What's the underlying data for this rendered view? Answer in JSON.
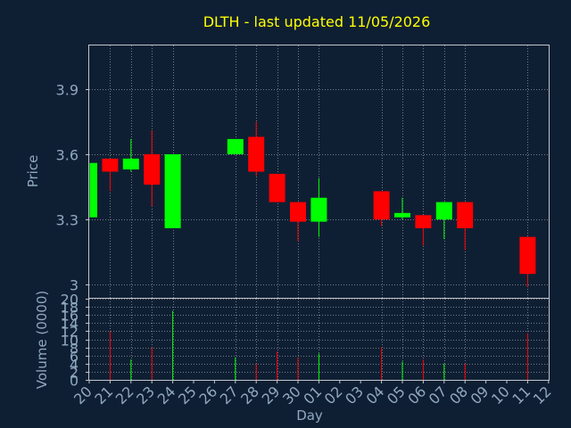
{
  "title": "DLTH - last updated 11/05/2026",
  "colors": {
    "background": "#0f1f33",
    "grid": "#9aa3ad",
    "axis": "#bfc6cc",
    "title": "#ffff00",
    "label": "#8fa8c0",
    "up": "#00ff00",
    "down": "#ff0000"
  },
  "chart_data": {
    "type": "candlestick",
    "title": "DLTH - last updated 11/05/2026",
    "xlabel": "Day",
    "price_panel": {
      "ylabel": "Price",
      "ylim": [
        2.94,
        4.1
      ],
      "yticks": [
        "3",
        "3.3",
        "3.6",
        "3.9"
      ],
      "ytick_values": [
        3.0,
        3.3,
        3.6,
        3.9
      ]
    },
    "volume_panel": {
      "ylabel": "Volume (0000)",
      "ylim": [
        0,
        20
      ],
      "yticks": [
        "0",
        "2",
        "4",
        "6",
        "8",
        "10",
        "12",
        "14",
        "16",
        "18",
        "20"
      ],
      "ytick_values": [
        0,
        2,
        4,
        6,
        8,
        10,
        12,
        14,
        16,
        18,
        20
      ]
    },
    "x_labels": [
      "20",
      "21",
      "22",
      "23",
      "24",
      "25",
      "26",
      "27",
      "28",
      "29",
      "30",
      "01",
      "02",
      "03",
      "04",
      "05",
      "06",
      "07",
      "08",
      "09",
      "10",
      "11",
      "12"
    ],
    "grid_days": [
      "21",
      "22",
      "23",
      "24",
      "27",
      "28",
      "29",
      "30",
      "01",
      "04",
      "05",
      "06",
      "07",
      "08",
      "11"
    ],
    "candles": [
      {
        "day": "20",
        "open": 3.31,
        "close": 3.56,
        "high": 3.56,
        "low": 3.31,
        "volume": 0
      },
      {
        "day": "21",
        "open": 3.58,
        "close": 3.52,
        "high": 3.58,
        "low": 3.43,
        "volume": 12
      },
      {
        "day": "22",
        "open": 3.53,
        "close": 3.58,
        "high": 3.67,
        "low": 3.52,
        "volume": 5
      },
      {
        "day": "23",
        "open": 3.6,
        "close": 3.46,
        "high": 3.71,
        "low": 3.36,
        "volume": 8
      },
      {
        "day": "24",
        "open": 3.26,
        "close": 3.6,
        "high": 3.6,
        "low": 3.26,
        "volume": 17
      },
      {
        "day": "27",
        "open": 3.6,
        "close": 3.67,
        "high": 3.67,
        "low": 3.6,
        "volume": 5.5
      },
      {
        "day": "28",
        "open": 3.68,
        "close": 3.52,
        "high": 3.75,
        "low": 3.5,
        "volume": 4
      },
      {
        "day": "29",
        "open": 3.51,
        "close": 3.38,
        "high": 3.51,
        "low": 3.38,
        "volume": 7
      },
      {
        "day": "30",
        "open": 3.38,
        "close": 3.29,
        "high": 3.38,
        "low": 3.2,
        "volume": 5.5
      },
      {
        "day": "01",
        "open": 3.29,
        "close": 3.4,
        "high": 3.49,
        "low": 3.22,
        "volume": 6.5
      },
      {
        "day": "04",
        "open": 3.43,
        "close": 3.3,
        "high": 3.43,
        "low": 3.27,
        "volume": 8
      },
      {
        "day": "05",
        "open": 3.31,
        "close": 3.33,
        "high": 3.4,
        "low": 3.3,
        "volume": 4.5
      },
      {
        "day": "06",
        "open": 3.32,
        "close": 3.26,
        "high": 3.32,
        "low": 3.18,
        "volume": 5
      },
      {
        "day": "07",
        "open": 3.3,
        "close": 3.38,
        "high": 3.38,
        "low": 3.21,
        "volume": 4
      },
      {
        "day": "08",
        "open": 3.38,
        "close": 3.26,
        "high": 3.38,
        "low": 3.16,
        "volume": 4
      },
      {
        "day": "11",
        "open": 3.22,
        "close": 3.05,
        "high": 3.22,
        "low": 2.99,
        "volume": 11.5
      }
    ]
  }
}
